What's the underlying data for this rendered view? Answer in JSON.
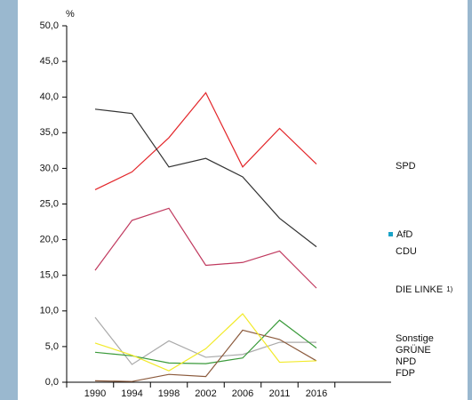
{
  "chart_data": {
    "type": "line",
    "y_axis_label": "%",
    "categories": [
      "1990",
      "1994",
      "1998",
      "2002",
      "2006",
      "2011",
      "2016"
    ],
    "ylim": [
      0,
      50
    ],
    "yticks": [
      {
        "value": 0,
        "label": "0,0"
      },
      {
        "value": 5,
        "label": "5,0"
      },
      {
        "value": 10,
        "label": "10,0"
      },
      {
        "value": 15,
        "label": "15,0"
      },
      {
        "value": 20,
        "label": "20,0"
      },
      {
        "value": 25,
        "label": "25,0"
      },
      {
        "value": 30,
        "label": "30,0"
      },
      {
        "value": 35,
        "label": "35,0"
      },
      {
        "value": 40,
        "label": "40,0"
      },
      {
        "value": 45,
        "label": "45,0"
      },
      {
        "value": 50,
        "label": "50,0"
      }
    ],
    "series": [
      {
        "name": "SPD",
        "color": "#e3262a",
        "values": [
          27.0,
          29.5,
          34.3,
          40.6,
          30.2,
          35.6,
          30.6
        ]
      },
      {
        "name": "AfD",
        "color": "#1aa3c8",
        "values": [
          null,
          null,
          null,
          null,
          null,
          null,
          20.8
        ]
      },
      {
        "name": "CDU",
        "color": "#333333",
        "values": [
          38.3,
          37.7,
          30.2,
          31.4,
          28.8,
          23.0,
          19.0
        ]
      },
      {
        "name": "DIE LINKE",
        "note": "1)",
        "color": "#c0395e",
        "values": [
          15.7,
          22.7,
          24.4,
          16.4,
          16.8,
          18.4,
          13.2
        ]
      },
      {
        "name": "Sonstige",
        "color": "#aaaaaa",
        "values": [
          9.1,
          2.5,
          5.8,
          3.5,
          3.9,
          5.6,
          5.6
        ]
      },
      {
        "name": "GRÜNE",
        "color": "#3a9a3a",
        "values": [
          4.2,
          3.7,
          2.7,
          2.6,
          3.4,
          8.7,
          4.8
        ]
      },
      {
        "name": "NPD",
        "color": "#8b5a3c",
        "values": [
          0.2,
          0.1,
          1.1,
          0.8,
          7.3,
          6.0,
          3.0
        ]
      },
      {
        "name": "FDP",
        "color": "#f2ea2a",
        "values": [
          5.5,
          3.8,
          1.6,
          4.7,
          9.6,
          2.8,
          3.0
        ]
      }
    ]
  }
}
